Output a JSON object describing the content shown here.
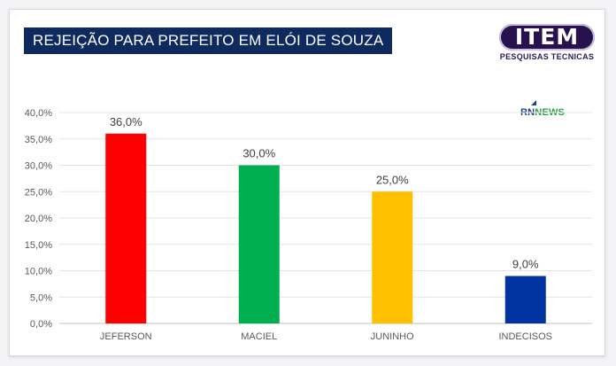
{
  "header": {
    "title": "REJEIÇÃO PARA PREFEITO EM ELÓI DE SOUZA"
  },
  "logos": {
    "item_main": "ITEM",
    "item_sub": "PESQUISAS TECNICAS",
    "rn_part1": "RN",
    "rn_part2": "NEWS"
  },
  "chart_data": {
    "type": "bar",
    "categories": [
      "JEFERSON",
      "MACIEL",
      "JUNINHO",
      "INDECISOS"
    ],
    "values": [
      36.0,
      30.0,
      25.0,
      9.0
    ],
    "data_labels": [
      "36,0%",
      "30,0%",
      "25,0%",
      "9,0%"
    ],
    "colors": [
      "#ff0000",
      "#00b050",
      "#ffc000",
      "#0033a0"
    ],
    "yticks": [
      0,
      5,
      10,
      15,
      20,
      25,
      30,
      35,
      40
    ],
    "ytick_labels": [
      "0,0%",
      "5,0%",
      "10,0%",
      "15,0%",
      "20,0%",
      "25,0%",
      "30,0%",
      "35,0%",
      "40,0%"
    ],
    "ylim": [
      0,
      40
    ],
    "grid": true,
    "title": "REJEIÇÃO PARA PREFEITO EM ELÓI DE SOUZA",
    "xlabel": "",
    "ylabel": ""
  }
}
